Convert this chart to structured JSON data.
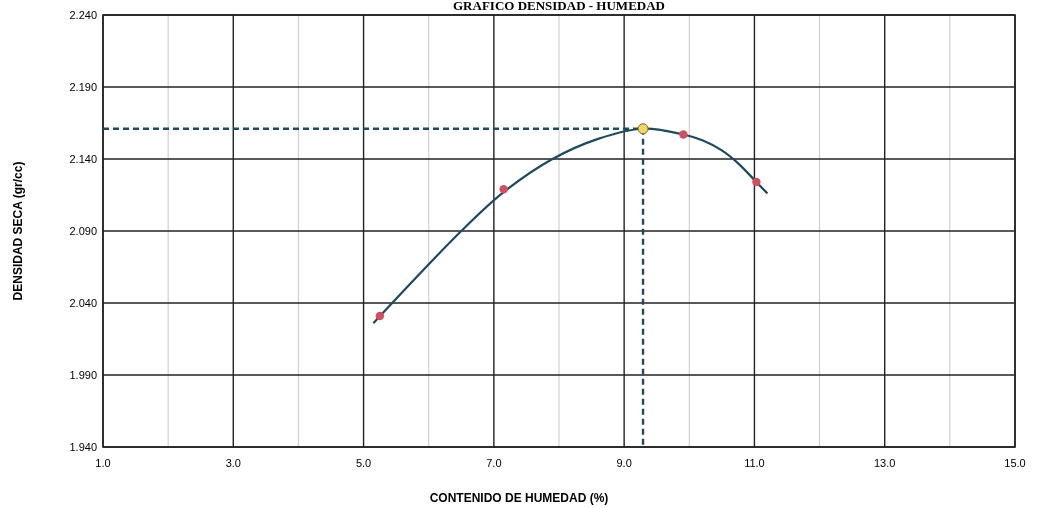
{
  "chart_data": {
    "type": "scatter",
    "title": "GRAFICO DENSIDAD - HUMEDAD",
    "xlabel": "CONTENIDO DE HUMEDAD (%)",
    "ylabel": "DENSIDAD SECA (gr/cc)",
    "xlim": [
      1,
      15
    ],
    "xticks": [
      {
        "value": 1,
        "label": "1.0"
      },
      {
        "value": 2,
        "label": null
      },
      {
        "value": 3,
        "label": "3.0"
      },
      {
        "value": 4,
        "label": null
      },
      {
        "value": 5,
        "label": "5.0"
      },
      {
        "value": 6,
        "label": null
      },
      {
        "value": 7,
        "label": "7.0"
      },
      {
        "value": 8,
        "label": null
      },
      {
        "value": 9,
        "label": "9.0"
      },
      {
        "value": 10,
        "label": null
      },
      {
        "value": 11,
        "label": "11.0"
      },
      {
        "value": 12,
        "label": null
      },
      {
        "value": 13,
        "label": "13.0"
      },
      {
        "value": 14,
        "label": null
      },
      {
        "value": 15,
        "label": "15.0"
      }
    ],
    "ylim": [
      1.94,
      2.24
    ],
    "yticks": [
      {
        "value": 1.94,
        "label": "1.940"
      },
      {
        "value": 1.99,
        "label": "1.990"
      },
      {
        "value": 2.04,
        "label": "2.040"
      },
      {
        "value": 2.09,
        "label": "2.090"
      },
      {
        "value": 2.14,
        "label": "2.140"
      },
      {
        "value": 2.19,
        "label": "2.190"
      },
      {
        "value": 2.24,
        "label": "2.240"
      }
    ],
    "grid": true,
    "series": [
      {
        "type": "line",
        "color": "#1f4a5e",
        "marker": "none",
        "line_style": "solid",
        "x": [
          5.15,
          6.5,
          7.15,
          7.9,
          8.6,
          9.29,
          9.91,
          10.2,
          10.5,
          10.75,
          11.03,
          11.2
        ],
        "values": [
          2.026,
          2.09,
          2.117,
          2.14,
          2.154,
          2.161,
          2.157,
          2.153,
          2.146,
          2.137,
          2.124,
          2.116
        ]
      },
      {
        "type": "line",
        "color": "#1f4a5e",
        "marker": "none",
        "line_style": "dashed",
        "x": [
          1,
          9.29,
          9.29
        ],
        "values": [
          2.161,
          2.161,
          1.94
        ]
      },
      {
        "color": "#d05060",
        "marker": "circle",
        "x": [
          5.25,
          7.15,
          9.91,
          11.03
        ],
        "values": [
          2.031,
          2.119,
          2.157,
          2.124
        ]
      },
      {
        "color": "#f5d46a",
        "marker": "circle",
        "x": [
          9.29
        ],
        "values": [
          2.161
        ]
      }
    ]
  }
}
